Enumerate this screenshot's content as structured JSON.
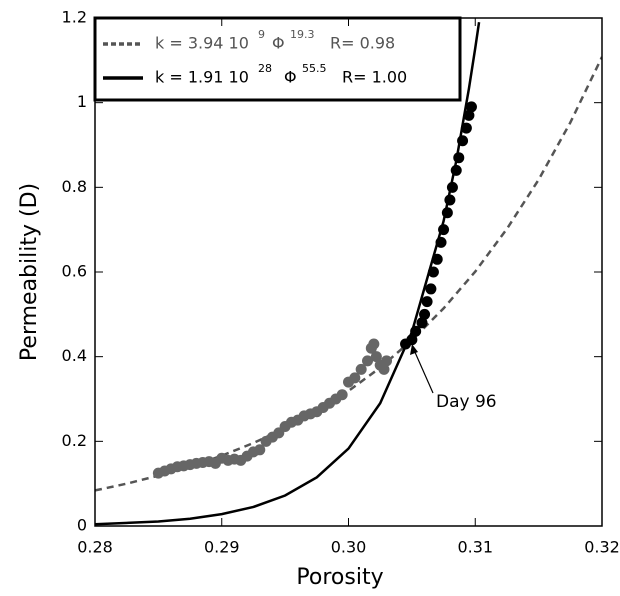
{
  "chart_data": {
    "type": "scatter",
    "xlabel": "Porosity",
    "ylabel": "Permeability (D)",
    "xlim": [
      0.28,
      0.32
    ],
    "ylim": [
      0,
      1.2
    ],
    "xticks": [
      0.28,
      0.29,
      {
        "value": 0.3,
        "label": "0.30"
      },
      0.31,
      0.32
    ],
    "yticks": [
      0,
      0.2,
      0.4,
      0.6,
      0.8,
      1,
      1.2
    ],
    "annotation": "Day 96",
    "series": [
      {
        "type": "line",
        "dash": true,
        "color": "#555555",
        "label_parts": [
          "k = 3.94 10",
          "9",
          "Φ",
          "19.3",
          "R= 0.98"
        ],
        "x": [
          0.28,
          0.2825,
          0.285,
          0.2875,
          0.29,
          0.2925,
          0.295,
          0.2975,
          0.3,
          0.3025,
          0.305,
          0.3075,
          0.31,
          0.3125,
          0.315,
          0.3175,
          0.32
        ],
        "values": [
          0.084,
          0.1,
          0.119,
          0.14,
          0.166,
          0.196,
          0.231,
          0.271,
          0.319,
          0.374,
          0.439,
          0.514,
          0.601,
          0.702,
          0.818,
          0.953,
          1.108
        ]
      },
      {
        "type": "line",
        "dash": false,
        "color": "#000000",
        "label_parts": [
          "k = 1.91 10",
          "28",
          "Φ",
          "55.5",
          "R= 1.00"
        ],
        "x": [
          0.28,
          0.285,
          0.2875,
          0.29,
          0.2925,
          0.295,
          0.2975,
          0.3,
          0.3025,
          0.305,
          0.3075,
          0.3085,
          0.3095,
          0.31,
          0.3103
        ],
        "values": [
          0.004,
          0.0106,
          0.0172,
          0.028,
          0.045,
          0.072,
          0.115,
          0.183,
          0.29,
          0.458,
          0.72,
          0.862,
          1.033,
          1.129,
          1.19
        ]
      },
      {
        "type": "points",
        "color": "#666666",
        "x": [
          0.285,
          0.2855,
          0.286,
          0.2865,
          0.287,
          0.2875,
          0.288,
          0.2885,
          0.289,
          0.2895,
          0.29,
          0.2905,
          0.291,
          0.2915,
          0.292,
          0.2925,
          0.293,
          0.2935,
          0.294,
          0.2945,
          0.295,
          0.2955,
          0.296,
          0.2965,
          0.297,
          0.2975,
          0.298,
          0.2985,
          0.299,
          0.2995,
          0.3,
          0.3005,
          0.301,
          0.3015,
          0.3018,
          0.302,
          0.3022,
          0.3025,
          0.3028,
          0.303
        ],
        "values": [
          0.125,
          0.13,
          0.135,
          0.14,
          0.142,
          0.145,
          0.148,
          0.15,
          0.152,
          0.148,
          0.16,
          0.155,
          0.158,
          0.155,
          0.165,
          0.175,
          0.18,
          0.2,
          0.21,
          0.22,
          0.235,
          0.245,
          0.25,
          0.26,
          0.265,
          0.27,
          0.28,
          0.29,
          0.3,
          0.31,
          0.34,
          0.35,
          0.37,
          0.39,
          0.42,
          0.43,
          0.4,
          0.38,
          0.37,
          0.39
        ]
      },
      {
        "type": "points",
        "color": "#000000",
        "x": [
          0.3045,
          0.305,
          0.3053,
          0.3058,
          0.306,
          0.3062,
          0.3065,
          0.3067,
          0.307,
          0.3073,
          0.3075,
          0.3078,
          0.308,
          0.3082,
          0.3085,
          0.3087,
          0.309,
          0.3093,
          0.3095,
          0.3097
        ],
        "values": [
          0.43,
          0.44,
          0.46,
          0.48,
          0.5,
          0.53,
          0.56,
          0.6,
          0.63,
          0.67,
          0.7,
          0.74,
          0.77,
          0.8,
          0.84,
          0.87,
          0.91,
          0.94,
          0.97,
          0.99
        ]
      }
    ]
  }
}
